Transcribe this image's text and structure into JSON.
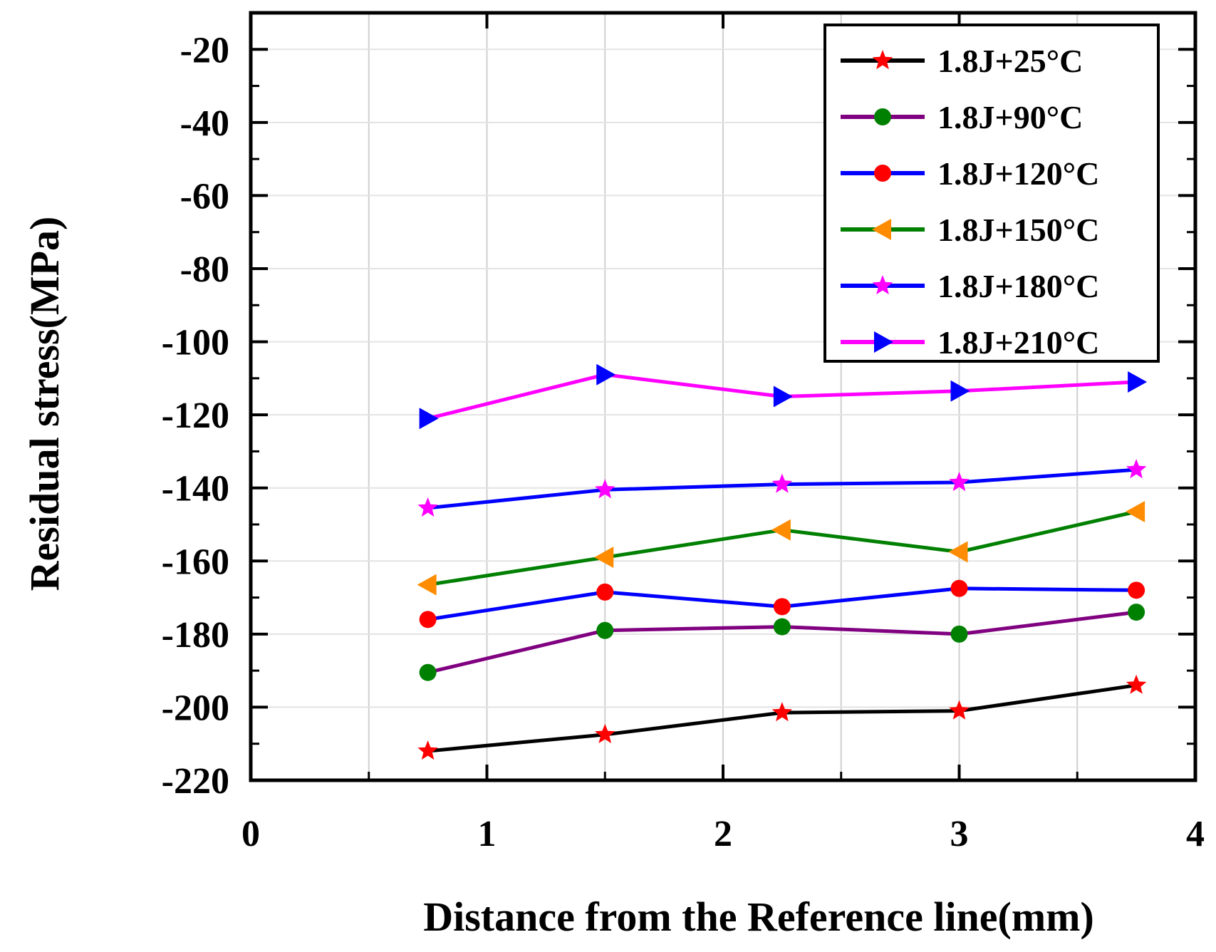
{
  "chart_data": {
    "type": "line",
    "title": "",
    "xlabel": "Distance from the Reference line(mm)",
    "ylabel": "Residual stress(MPa)",
    "xlim": [
      0,
      4
    ],
    "ylim": [
      -220,
      -10
    ],
    "x_ticks": [
      "0",
      "1",
      "2",
      "3",
      "4"
    ],
    "y_ticks": [
      "-20",
      "-40",
      "-60",
      "-80",
      "-100",
      "-120",
      "-140",
      "-160",
      "-180",
      "-200",
      "-220"
    ],
    "grid": true,
    "legend_position": "top-right",
    "x": [
      0.75,
      1.5,
      2.25,
      3.0,
      3.75
    ],
    "series": [
      {
        "name": "1.8J+25°C",
        "values": [
          -212,
          -207.5,
          -201.5,
          -201,
          -194
        ],
        "line_color": "#000000",
        "marker": "star",
        "marker_color": "#ff0000"
      },
      {
        "name": "1.8J+90°C",
        "values": [
          -190.5,
          -179,
          -178,
          -180,
          -174
        ],
        "line_color": "#800080",
        "marker": "circle",
        "marker_color": "#008000"
      },
      {
        "name": "1.8J+120°C",
        "values": [
          -176,
          -168.5,
          -172.5,
          -167.5,
          -168
        ],
        "line_color": "#0000ff",
        "marker": "circle",
        "marker_color": "#ff0000"
      },
      {
        "name": "1.8J+150°C",
        "values": [
          -166.5,
          -159,
          -151.5,
          -157.5,
          -146.5
        ],
        "line_color": "#008000",
        "marker": "triangle-left",
        "marker_color": "#ff8c00"
      },
      {
        "name": "1.8J+180°C",
        "values": [
          -145.5,
          -140.5,
          -139,
          -138.5,
          -135
        ],
        "line_color": "#0000ff",
        "marker": "star",
        "marker_color": "#ff00ff"
      },
      {
        "name": "1.8J+210°C",
        "values": [
          -121,
          -109,
          -115,
          -113.5,
          -111
        ],
        "line_color": "#ff00ff",
        "marker": "triangle-right",
        "marker_color": "#0000ff"
      }
    ]
  }
}
